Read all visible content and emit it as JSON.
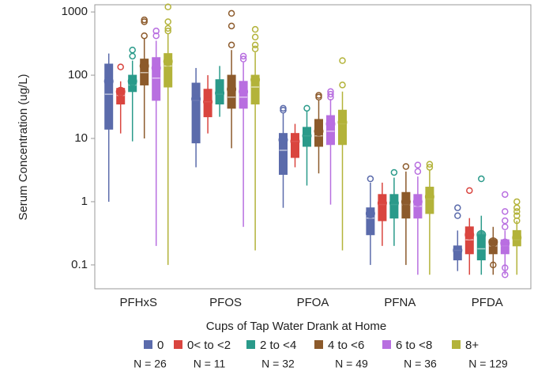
{
  "chart_data": {
    "type": "box",
    "y_label": "Serum Concentration (ug/L)",
    "categories": [
      "PFHxS",
      "PFOS",
      "PFOA",
      "PFNA",
      "PFDA"
    ],
    "ylim": [
      0.042,
      1300
    ],
    "yticks": [
      0.1,
      1,
      10,
      100,
      1000
    ],
    "log_y": true,
    "legend_title": "Cups of  Tap Water Drank at Home",
    "series": [
      {
        "name": "0",
        "note": "N = 26",
        "color": "#5b6bab",
        "low": [
          1.0,
          3.5,
          0.8,
          0.1,
          0.08
        ],
        "q1": [
          14,
          8.5,
          2.7,
          0.3,
          0.12
        ],
        "median": [
          50,
          40,
          6.5,
          0.55,
          0.17
        ],
        "q3": [
          150,
          75,
          12,
          0.8,
          0.2
        ],
        "high": [
          220,
          130,
          25,
          2.0,
          0.35
        ],
        "mean": [
          80,
          42,
          9.5,
          0.65,
          0.17
        ],
        "outliers": [
          [],
          [],
          [
            28,
            30
          ],
          [
            2.3
          ],
          [
            0.6,
            0.8
          ]
        ]
      },
      {
        "name": "0< to <2",
        "note": "N = 11",
        "color": "#d9453f",
        "low": [
          12,
          12,
          3.5,
          0.2,
          0.07
        ],
        "q1": [
          35,
          22,
          5,
          0.5,
          0.15
        ],
        "median": [
          48,
          38,
          9,
          0.9,
          0.25
        ],
        "q3": [
          62,
          60,
          12,
          1.3,
          0.4
        ],
        "high": [
          80,
          100,
          17,
          2.0,
          0.55
        ],
        "mean": [
          55,
          38,
          9,
          0.95,
          0.3
        ],
        "outliers": [
          [
            135
          ],
          [],
          [],
          [],
          [
            1.5
          ]
        ]
      },
      {
        "name": "2 to <4",
        "note": "N = 32",
        "color": "#2a9a8a",
        "low": [
          9,
          22,
          1.8,
          0.2,
          0.07
        ],
        "q1": [
          55,
          35,
          7.5,
          0.55,
          0.12
        ],
        "median": [
          70,
          50,
          11,
          0.9,
          0.18
        ],
        "q3": [
          100,
          85,
          15,
          1.3,
          0.3
        ],
        "high": [
          170,
          140,
          27,
          2.4,
          0.6
        ],
        "mean": [
          80,
          52,
          11,
          0.95,
          0.3
        ],
        "outliers": [
          [
            200,
            250
          ],
          [],
          [
            30
          ],
          [
            2.9
          ],
          [
            2.3
          ]
        ]
      },
      {
        "name": "4 to <6",
        "note": "N = 49",
        "color": "#8c5a2b",
        "low": [
          10,
          7,
          2.8,
          0.1,
          0.07
        ],
        "q1": [
          70,
          30,
          7.5,
          0.55,
          0.15
        ],
        "median": [
          110,
          45,
          11,
          0.9,
          0.2
        ],
        "q3": [
          180,
          100,
          20,
          1.4,
          0.25
        ],
        "high": [
          380,
          250,
          40,
          3.0,
          0.4
        ],
        "mean": [
          140,
          60,
          13,
          1.0,
          0.23
        ],
        "outliers": [
          [
            420,
            700,
            750
          ],
          [
            300,
            600,
            950
          ],
          [
            45,
            48
          ],
          [
            3.6
          ],
          [
            0.1
          ]
        ]
      },
      {
        "name": "6 to <8",
        "note": "N = 36",
        "color": "#b86fe0",
        "low": [
          0.2,
          0.4,
          0.9,
          0.07,
          0.07
        ],
        "q1": [
          40,
          30,
          8,
          0.55,
          0.15
        ],
        "median": [
          90,
          45,
          13,
          0.85,
          0.2
        ],
        "q3": [
          190,
          80,
          23,
          1.3,
          0.25
        ],
        "high": [
          350,
          160,
          42,
          2.5,
          0.35
        ],
        "mean": [
          130,
          55,
          17,
          1.0,
          0.22
        ],
        "outliers": [
          [
            420,
            500
          ],
          [
            180,
            200
          ],
          [
            45,
            50,
            55
          ],
          [
            3.0,
            3.8
          ],
          [
            0.07,
            0.09,
            0.4,
            0.5,
            0.7,
            1.3
          ]
        ]
      },
      {
        "name": "8+",
        "note": "N = 129",
        "color": "#b3b33a",
        "low": [
          0.1,
          0.17,
          0.17,
          0.07,
          0.07
        ],
        "q1": [
          65,
          35,
          8,
          0.65,
          0.2
        ],
        "median": [
          140,
          65,
          17,
          1.1,
          0.25
        ],
        "q3": [
          220,
          100,
          28,
          1.7,
          0.35
        ],
        "high": [
          450,
          230,
          55,
          3.2,
          0.5
        ],
        "mean": [
          165,
          85,
          18,
          1.2,
          0.27
        ],
        "outliers": [
          [
            500,
            550,
            700,
            1200
          ],
          [
            260,
            300,
            400,
            530
          ],
          [
            70,
            170
          ],
          [
            3.5,
            3.9
          ],
          [
            0.5,
            0.6,
            0.7,
            0.8,
            1.0
          ]
        ]
      }
    ]
  }
}
